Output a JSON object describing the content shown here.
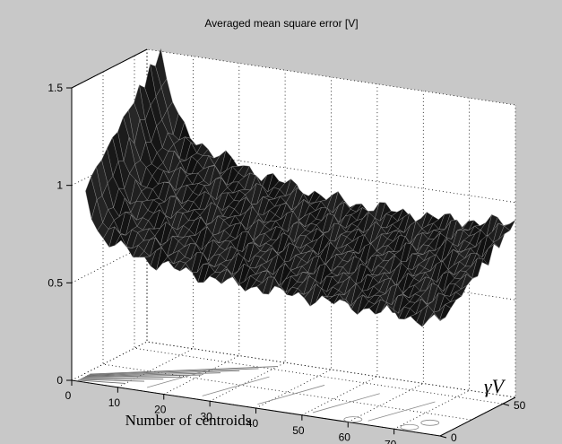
{
  "chart_data": {
    "type": "surface",
    "title": "Averaged mean square error [V]",
    "xlabel": "Number of centroids",
    "ylabel": "γV",
    "zlabel": "",
    "x_ticks": [
      "0",
      "10",
      "20",
      "30",
      "40",
      "50",
      "60",
      "70"
    ],
    "y_ticks": [
      "0",
      "50"
    ],
    "z_ticks": [
      "0",
      "0.5",
      "1",
      "1.5"
    ],
    "xlim": [
      0,
      80
    ],
    "ylim": [
      0,
      60
    ],
    "zlim": [
      0,
      1.5
    ],
    "grid": true,
    "contour_projection_on_floor": true,
    "surface_profile": {
      "x": [
        3,
        5,
        7,
        10,
        15,
        20,
        25,
        30,
        35,
        40,
        45,
        50,
        55,
        60,
        65,
        70,
        75,
        80
      ],
      "z_at_low_gamma": [
        1.0,
        0.8,
        0.75,
        0.72,
        0.68,
        0.66,
        0.64,
        0.63,
        0.62,
        0.62,
        0.61,
        0.61,
        0.6,
        0.6,
        0.59,
        0.59,
        0.58,
        0.58
      ],
      "z_at_high_gamma": [
        1.5,
        1.3,
        1.15,
        1.08,
        1.02,
        0.98,
        0.95,
        0.92,
        0.9,
        0.88,
        0.87,
        0.87,
        0.86,
        0.86,
        0.86,
        0.87,
        0.88,
        0.9
      ]
    }
  }
}
